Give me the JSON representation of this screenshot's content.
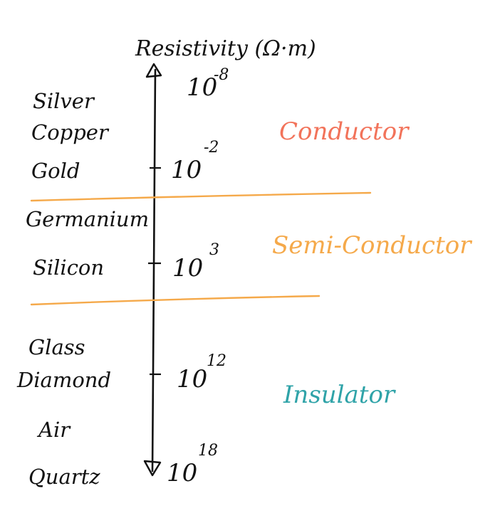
{
  "title": "Resistivity (Ω·m)",
  "axis": {
    "ticks": [
      {
        "base": "10",
        "exponent": "-8"
      },
      {
        "base": "10",
        "exponent": "-2"
      },
      {
        "base": "10",
        "exponent": "3"
      },
      {
        "base": "10",
        "exponent": "12"
      },
      {
        "base": "10",
        "exponent": "18"
      }
    ]
  },
  "categories": {
    "conductor": {
      "label": "Conductor",
      "color": "#f2735a"
    },
    "semiconductor": {
      "label": "Semi-Conductor",
      "color": "#f5a94a"
    },
    "insulator": {
      "label": "Insulator",
      "color": "#2fa3a8"
    }
  },
  "materials": {
    "conductors": [
      "Silver",
      "Copper",
      "Gold"
    ],
    "semiconductors": [
      "Germanium",
      "Silicon"
    ],
    "insulators": [
      "Glass",
      "Diamond",
      "Air",
      "Quartz"
    ]
  },
  "colors": {
    "ink": "#111111",
    "divider": "#f5a94a"
  }
}
